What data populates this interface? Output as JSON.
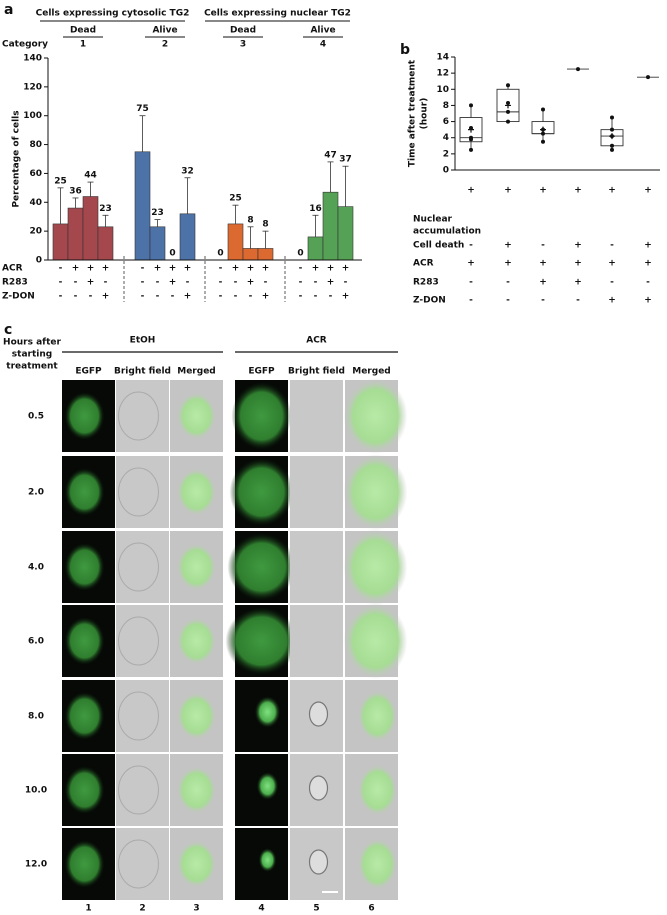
{
  "panel_labels": [
    "a",
    "b",
    "c"
  ],
  "chart_data": [
    {
      "type": "bar",
      "headers": [
        "Cells expressing cytosolic TG2",
        "Cells expressing nuclear TG2"
      ],
      "category_label": "Category",
      "groups": [
        {
          "category": "1",
          "status": "Dead",
          "color": "#a4484d",
          "values": [
            25,
            36,
            44,
            23
          ],
          "errors": [
            25,
            7,
            10,
            8
          ]
        },
        {
          "category": "2",
          "status": "Alive",
          "color": "#4d72a8",
          "values": [
            75,
            23,
            0,
            32
          ],
          "errors": [
            25,
            5,
            0,
            25
          ]
        },
        {
          "category": "3",
          "status": "Dead",
          "color": "#dc6a30",
          "values": [
            0,
            25,
            8,
            8
          ],
          "errors": [
            0,
            13,
            15,
            12
          ]
        },
        {
          "category": "4",
          "status": "Alive",
          "color": "#55a155",
          "values": [
            0,
            16,
            47,
            37
          ],
          "errors": [
            0,
            15,
            21,
            28
          ]
        }
      ],
      "ylabel": "Percentage of cells",
      "ylim": [
        0,
        140
      ],
      "yticks": [
        0,
        20,
        40,
        60,
        80,
        100,
        120,
        140
      ],
      "conditions": [
        {
          "name": "ACR",
          "signs": [
            "-",
            "+",
            "+",
            "+"
          ]
        },
        {
          "name": "R283",
          "signs": [
            "-",
            "-",
            "+",
            "-"
          ]
        },
        {
          "name": "Z-DON",
          "signs": [
            "-",
            "-",
            "-",
            "+"
          ]
        }
      ]
    },
    {
      "type": "box",
      "ylabel": [
        "Time after treatment",
        "(hour)"
      ],
      "ylim": [
        0,
        14
      ],
      "yticks": [
        0,
        2,
        4,
        6,
        8,
        10,
        12,
        14
      ],
      "boxes": [
        {
          "min": 2.5,
          "q1": 3.5,
          "median": 4,
          "q3": 6.5,
          "max": 8,
          "mean": 5,
          "points": [
            8,
            5.2,
            4,
            3.8,
            2.5
          ]
        },
        {
          "min": 6,
          "q1": 6,
          "median": 7.2,
          "q3": 10,
          "max": 10.5,
          "mean": 8,
          "points": [
            10.5,
            8.3,
            7.2,
            6
          ]
        },
        {
          "min": 3.5,
          "q1": 4.5,
          "median": 4.5,
          "q3": 6,
          "max": 7.5,
          "mean": 5,
          "points": [
            7.5,
            5,
            4.5,
            3.5
          ]
        },
        {
          "min": 12.5,
          "q1": 12.5,
          "median": 12.5,
          "q3": 12.5,
          "max": 12.5,
          "points": [
            12.5
          ]
        },
        {
          "min": 2.5,
          "q1": 3,
          "median": 4.2,
          "q3": 5,
          "max": 6.5,
          "mean": 4.2,
          "points": [
            6.5,
            5,
            4.2,
            3,
            2.5
          ]
        },
        {
          "min": 11.5,
          "q1": 11.5,
          "median": 11.5,
          "q3": 11.5,
          "max": 11.5,
          "points": [
            11.5
          ]
        }
      ],
      "conditions": [
        {
          "lines": [
            "Nuclear",
            "accumulation"
          ],
          "signs": [
            "+",
            "+",
            "+",
            "+",
            "+",
            "+"
          ]
        },
        {
          "lines": [
            "Cell death"
          ],
          "signs": [
            "-",
            "+",
            "-",
            "+",
            "-",
            "+"
          ]
        },
        {
          "lines": [
            "ACR"
          ],
          "signs": [
            "+",
            "+",
            "+",
            "+",
            "+",
            "+"
          ]
        },
        {
          "lines": [
            "R283"
          ],
          "signs": [
            "-",
            "-",
            "+",
            "+",
            "-",
            "-"
          ]
        },
        {
          "lines": [
            "Z-DON"
          ],
          "signs": [
            "-",
            "-",
            "-",
            "-",
            "+",
            "+"
          ]
        }
      ]
    }
  ],
  "panel_c": {
    "row_header": [
      "Hours after",
      "starting",
      "treatment"
    ],
    "treatments": [
      "EtOH",
      "ACR"
    ],
    "columns": [
      "EGFP",
      "Bright field",
      "Merged"
    ],
    "hours": [
      "0.5",
      "2.0",
      "4.0",
      "6.0",
      "8.0",
      "10.0",
      "12.0"
    ],
    "column_numbers": [
      "1",
      "2",
      "3",
      "4",
      "5",
      "6"
    ]
  }
}
